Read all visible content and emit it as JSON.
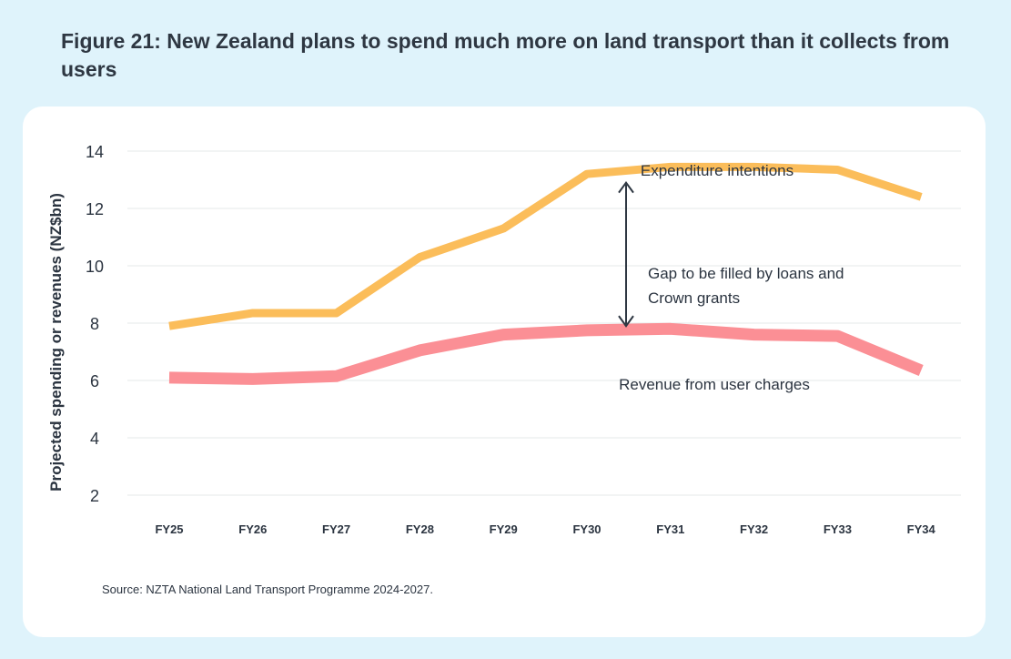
{
  "figure": {
    "title": "Figure 21: New Zealand plans to spend much more on land transport than it collects from users",
    "source": "Source: NZTA National Land Transport Programme 2024-2027."
  },
  "colors": {
    "background": "#dff3fb",
    "card": "#ffffff",
    "expenditure": "#fbbd5a",
    "revenue": "#fb8f95",
    "gridline": "#e6e8ea",
    "text": "#2b3440"
  },
  "chart_data": {
    "type": "line",
    "title": "",
    "xlabel": "",
    "ylabel": "Projected spending or revenues (NZ$bn)",
    "ylim": [
      2,
      14
    ],
    "yticks": [
      2,
      4,
      6,
      8,
      10,
      12,
      14
    ],
    "grid": true,
    "categories": [
      "FY25",
      "FY26",
      "FY27",
      "FY28",
      "FY29",
      "FY30",
      "FY31",
      "FY32",
      "FY33",
      "FY34"
    ],
    "series": [
      {
        "name": "Expenditure intentions",
        "values": [
          7.9,
          8.35,
          8.35,
          10.3,
          11.3,
          13.2,
          13.45,
          13.45,
          13.35,
          12.4
        ]
      },
      {
        "name": "Revenue from user charges",
        "values": [
          6.1,
          6.05,
          6.15,
          7.05,
          7.6,
          7.75,
          7.8,
          7.6,
          7.55,
          6.35
        ]
      }
    ],
    "annotations": [
      {
        "text_lines": [
          "Gap to be filled by loans and",
          "Crown grants"
        ],
        "arrow_from": 12.9,
        "arrow_to": 7.9
      }
    ]
  }
}
